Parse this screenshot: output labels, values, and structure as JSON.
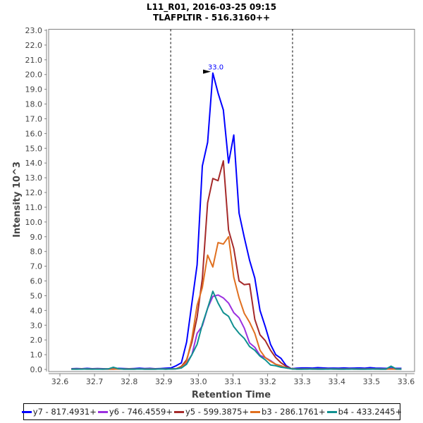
{
  "chart_data": {
    "type": "line",
    "title": "L11_R01, 2016-03-25 09:15",
    "subtitle": "TLAFPLTIR - 516.3160++",
    "xlabel": "Retention Time",
    "ylabel": "Intensity 10^3",
    "xlim": [
      32.57,
      33.62
    ],
    "ylim": [
      0,
      23.0
    ],
    "x_ticks": [
      "32.6",
      "32.7",
      "32.8",
      "32.9",
      "33.0",
      "33.1",
      "33.2",
      "33.3",
      "33.4",
      "33.5",
      "33.6"
    ],
    "y_ticks": [
      "0.0",
      "1.0",
      "2.0",
      "3.0",
      "4.0",
      "5.0",
      "6.0",
      "7.0",
      "8.0",
      "9.0",
      "10.0",
      "11.0",
      "12.0",
      "13.0",
      "14.0",
      "15.0",
      "16.0",
      "17.0",
      "18.0",
      "19.0",
      "20.0",
      "21.0",
      "22.0",
      "23.0"
    ],
    "x_start": 32.633,
    "x_step": 0.01514,
    "integration_bounds": [
      32.92,
      33.272
    ],
    "annotation": {
      "label": "33.0",
      "x": 33.042,
      "y": 20.1,
      "color": "#0000ff"
    },
    "legend_position": "bottom",
    "series": [
      {
        "name": "y7 - 817.4931+",
        "color": "#0000ff",
        "values": [
          0.05,
          0.06,
          0.05,
          0.07,
          0.05,
          0.06,
          0.05,
          0.04,
          0.05,
          0.07,
          0.06,
          0.05,
          0.06,
          0.08,
          0.06,
          0.07,
          0.05,
          0.06,
          0.08,
          0.1,
          0.25,
          0.45,
          1.85,
          4.5,
          7.1,
          13.8,
          15.4,
          20.1,
          18.75,
          17.6,
          14.0,
          15.9,
          10.6,
          8.95,
          7.4,
          6.2,
          4.0,
          2.9,
          1.7,
          1.0,
          0.75,
          0.25,
          0.05,
          0.08,
          0.1,
          0.1,
          0.09,
          0.12,
          0.1,
          0.08,
          0.09,
          0.08,
          0.1,
          0.08,
          0.09,
          0.1,
          0.08,
          0.12,
          0.09,
          0.08,
          0.07,
          0.08,
          0.07,
          0.07
        ]
      },
      {
        "name": "y6 - 746.4559+",
        "color": "#9b30e0",
        "values": [
          0.03,
          0.03,
          0.04,
          0.03,
          0.03,
          0.04,
          0.03,
          0.03,
          0.03,
          0.04,
          0.03,
          0.03,
          0.03,
          0.04,
          0.03,
          0.03,
          0.03,
          0.04,
          0.03,
          0.03,
          0.05,
          0.1,
          0.45,
          1.0,
          2.45,
          2.95,
          4.15,
          4.95,
          5.05,
          4.85,
          4.5,
          3.85,
          3.5,
          2.8,
          1.8,
          1.5,
          0.95,
          0.8,
          0.6,
          0.35,
          0.25,
          0.1,
          0.05,
          0.03,
          0.03,
          0.04,
          0.03,
          0.03,
          0.03,
          0.04,
          0.03,
          0.03,
          0.03,
          0.04,
          0.03,
          0.03,
          0.03,
          0.04,
          0.03,
          0.03,
          0.03,
          0.04,
          0.03,
          0.03
        ]
      },
      {
        "name": "y5 - 599.3875+",
        "color": "#a52a2a",
        "values": [
          0.02,
          0.02,
          0.03,
          0.02,
          0.02,
          0.03,
          0.02,
          0.02,
          0.02,
          0.03,
          0.02,
          0.02,
          0.02,
          0.03,
          0.02,
          0.02,
          0.02,
          0.03,
          0.02,
          0.03,
          0.05,
          0.2,
          0.65,
          1.85,
          3.55,
          6.15,
          11.3,
          12.95,
          12.8,
          14.15,
          9.45,
          8.2,
          6.0,
          5.75,
          5.8,
          3.4,
          2.35,
          1.95,
          1.3,
          0.8,
          0.45,
          0.2,
          0.05,
          0.02,
          0.02,
          0.03,
          0.02,
          0.02,
          0.02,
          0.03,
          0.02,
          0.02,
          0.02,
          0.03,
          0.02,
          0.02,
          0.02,
          0.03,
          0.02,
          0.02,
          0.02,
          0.03,
          0.02,
          0.02
        ]
      },
      {
        "name": "b3 - 286.1761+",
        "color": "#e07020",
        "values": [
          0.03,
          0.03,
          0.03,
          0.04,
          0.03,
          0.03,
          0.03,
          0.04,
          0.03,
          0.03,
          0.03,
          0.04,
          0.03,
          0.03,
          0.03,
          0.04,
          0.03,
          0.03,
          0.03,
          0.03,
          0.05,
          0.15,
          0.55,
          2.1,
          4.35,
          5.55,
          7.75,
          6.95,
          8.6,
          8.5,
          9.0,
          6.25,
          4.85,
          3.8,
          3.2,
          2.45,
          1.3,
          0.8,
          0.55,
          0.35,
          0.25,
          0.1,
          0.05,
          0.03,
          0.03,
          0.03,
          0.04,
          0.03,
          0.03,
          0.03,
          0.04,
          0.03,
          0.03,
          0.03,
          0.04,
          0.03,
          0.03,
          0.03,
          0.04,
          0.03,
          0.03,
          0.03,
          0.04,
          0.03
        ]
      },
      {
        "name": "b4 - 433.2445+",
        "color": "#109090",
        "values": [
          0.02,
          0.02,
          0.02,
          0.03,
          0.02,
          0.02,
          0.02,
          0.03,
          0.15,
          0.05,
          0.02,
          0.02,
          0.02,
          0.03,
          0.02,
          0.02,
          0.02,
          0.03,
          0.02,
          0.03,
          0.04,
          0.1,
          0.35,
          1.0,
          1.7,
          3.05,
          4.15,
          5.3,
          4.5,
          3.85,
          3.6,
          2.9,
          2.45,
          2.1,
          1.55,
          1.3,
          0.9,
          0.65,
          0.3,
          0.25,
          0.15,
          0.1,
          0.04,
          0.02,
          0.02,
          0.02,
          0.03,
          0.02,
          0.02,
          0.02,
          0.03,
          0.02,
          0.02,
          0.02,
          0.03,
          0.02,
          0.02,
          0.02,
          0.03,
          0.02,
          0.02,
          0.22,
          0.03,
          0.02
        ]
      }
    ]
  }
}
